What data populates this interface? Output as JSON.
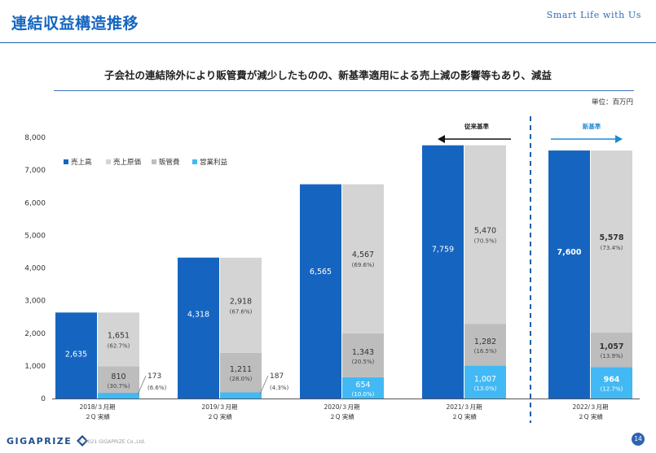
{
  "header": {
    "title": "連結収益構造推移",
    "tagline": "Smart Life with Us"
  },
  "headline": "子会社の連結除外により販管費が減少したものの、新基準適用による売上減の影響等もあり、減益",
  "unit_label": "単位：百万円",
  "arrows": {
    "old_standard": "従来基準",
    "new_standard": "新基準"
  },
  "footer": {
    "logo": "GIGAPRIZE",
    "copyright": "© 2021 GIGAPRIZE Co.,Ltd.",
    "page": "14"
  },
  "colors": {
    "sales": "#1565c0",
    "cogs": "#d4d4d4",
    "sga": "#bdbdbd",
    "op": "#42b9f4",
    "accent": "#1f5fa8"
  },
  "chart_data": {
    "type": "bar",
    "ylim": [
      0,
      8000
    ],
    "yticks": [
      "0",
      "1,000",
      "2,000",
      "3,000",
      "4,000",
      "5,000",
      "6,000",
      "7,000",
      "8,000"
    ],
    "legend": [
      "売上高",
      "売上原価",
      "販管費",
      "営業利益"
    ],
    "categories": [
      {
        "line1": "2018/３月期",
        "line2": "２Q 実績"
      },
      {
        "line1": "2019/３月期",
        "line2": "２Q 実績"
      },
      {
        "line1": "2020/３月期",
        "line2": "２Q 実績"
      },
      {
        "line1": "2021/３月期",
        "line2": "２Q 実績"
      },
      {
        "line1": "2022/３月期",
        "line2": "２Q 実績"
      }
    ],
    "sales": [
      {
        "value": 2635,
        "label": "2,635"
      },
      {
        "value": 4318,
        "label": "4,318"
      },
      {
        "value": 6565,
        "label": "6,565"
      },
      {
        "value": 7759,
        "label": "7,759"
      },
      {
        "value": 7600,
        "label": "7,600"
      }
    ],
    "cogs": [
      {
        "value": 1651,
        "label": "1,651",
        "pct": "(62.7%)"
      },
      {
        "value": 2918,
        "label": "2,918",
        "pct": "(67.6%)"
      },
      {
        "value": 4567,
        "label": "4,567",
        "pct": "(69.6%)"
      },
      {
        "value": 5470,
        "label": "5,470",
        "pct": "(70.5%)"
      },
      {
        "value": 5578,
        "label": "5,578",
        "pct": "(73.4%)"
      }
    ],
    "sga": [
      {
        "value": 810,
        "label": "810",
        "pct": "(30.7%)"
      },
      {
        "value": 1211,
        "label": "1,211",
        "pct": "(28.0%)"
      },
      {
        "value": 1343,
        "label": "1,343",
        "pct": "(20.5%)"
      },
      {
        "value": 1282,
        "label": "1,282",
        "pct": "(16.5%)"
      },
      {
        "value": 1057,
        "label": "1,057",
        "pct": "(13.9%)"
      }
    ],
    "op": [
      {
        "value": 173,
        "label": "173",
        "pct": "(6.6%)"
      },
      {
        "value": 187,
        "label": "187",
        "pct": "(4.3%)"
      },
      {
        "value": 654,
        "label": "654",
        "pct": "(10.0%)"
      },
      {
        "value": 1007,
        "label": "1,007",
        "pct": "(13.0%)"
      },
      {
        "value": 964,
        "label": "964",
        "pct": "(12.7%)"
      }
    ]
  }
}
